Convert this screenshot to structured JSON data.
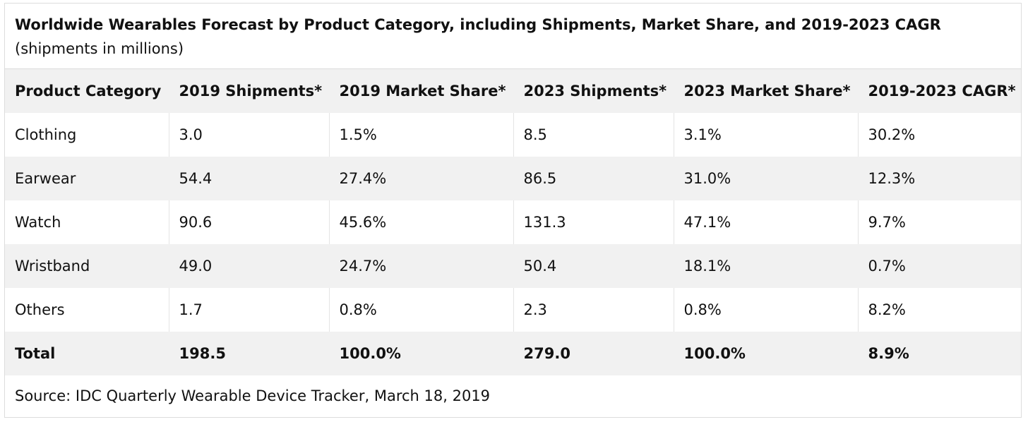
{
  "chart_data": {
    "type": "table",
    "title": "Worldwide Wearables Forecast by Product Category, including Shipments, Market Share, and 2019-2023 CAGR",
    "subtitle": "(shipments in millions)",
    "columns": [
      "Product Category",
      "2019 Shipments*",
      "2019 Market Share*",
      "2023 Shipments*",
      "2023 Market Share*",
      "2019-2023 CAGR*"
    ],
    "rows": [
      [
        "Clothing",
        "3.0",
        "1.5%",
        "8.5",
        "3.1%",
        "30.2%"
      ],
      [
        "Earwear",
        "54.4",
        "27.4%",
        "86.5",
        "31.0%",
        "12.3%"
      ],
      [
        "Watch",
        "90.6",
        "45.6%",
        "131.3",
        "47.1%",
        "9.7%"
      ],
      [
        "Wristband",
        "49.0",
        "24.7%",
        "50.4",
        "18.1%",
        "0.7%"
      ],
      [
        "Others",
        "1.7",
        "0.8%",
        "2.3",
        "0.8%",
        "8.2%"
      ]
    ],
    "total": [
      "Total",
      "198.5",
      "100.0%",
      "279.0",
      "100.0%",
      "8.9%"
    ],
    "source": "Source: IDC Quarterly Wearable Device Tracker, March 18, 2019"
  }
}
